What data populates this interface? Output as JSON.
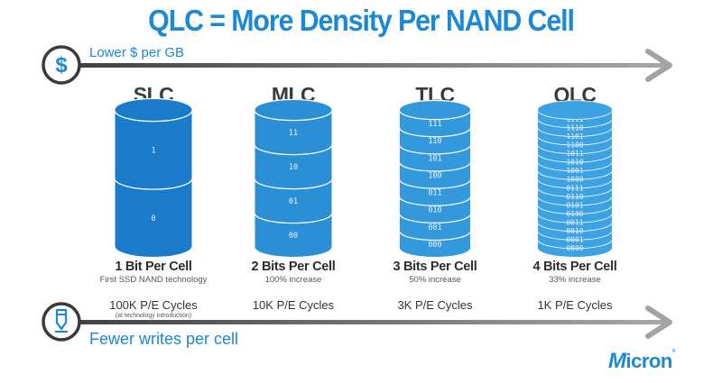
{
  "title": "QLC = More Density Per NAND Cell",
  "top_arrow": {
    "label": "Lower $ per GB",
    "icon": "dollar-icon"
  },
  "bottom_arrow": {
    "label": "Fewer writes per cell",
    "icon": "pen-icon"
  },
  "colors": {
    "accent": "#1d88d4",
    "arrow": "#8f8f8f",
    "cell_dark": "#1a7bcb",
    "cell_light": "#3aa0e0"
  },
  "columns": [
    {
      "name": "SLC",
      "bits_title": "1 Bit Per Cell",
      "subtitle": "First SSD NAND technology",
      "pe_cycles": "100K P/E Cycles",
      "pe_note": "(at technology introduction)",
      "levels": [
        "1",
        "0"
      ],
      "color": "#1a7bcb"
    },
    {
      "name": "MLC",
      "bits_title": "2 Bits Per Cell",
      "subtitle": "100% increase",
      "pe_cycles": "10K P/E Cycles",
      "pe_note": "",
      "levels": [
        "11",
        "10",
        "01",
        "00"
      ],
      "color": "#2b8fd6"
    },
    {
      "name": "TLC",
      "bits_title": "3 Bits Per Cell",
      "subtitle": "50% increase",
      "pe_cycles": "3K P/E Cycles",
      "pe_note": "",
      "levels": [
        "111",
        "110",
        "101",
        "100",
        "011",
        "010",
        "001",
        "000"
      ],
      "color": "#3399dc"
    },
    {
      "name": "QLC",
      "bits_title": "4 Bits Per Cell",
      "subtitle": "33% increase",
      "pe_cycles": "1K P/E Cycles",
      "pe_note": "",
      "levels": [
        "1111",
        "1110",
        "1101",
        "1100",
        "1011",
        "1010",
        "1001",
        "1000",
        "0111",
        "0110",
        "0101",
        "0100",
        "0011",
        "0010",
        "0001",
        "0000"
      ],
      "color": "#3ca2e2"
    }
  ],
  "logo": {
    "text_m": "M",
    "text_rest": "icron",
    "reg": "®"
  }
}
